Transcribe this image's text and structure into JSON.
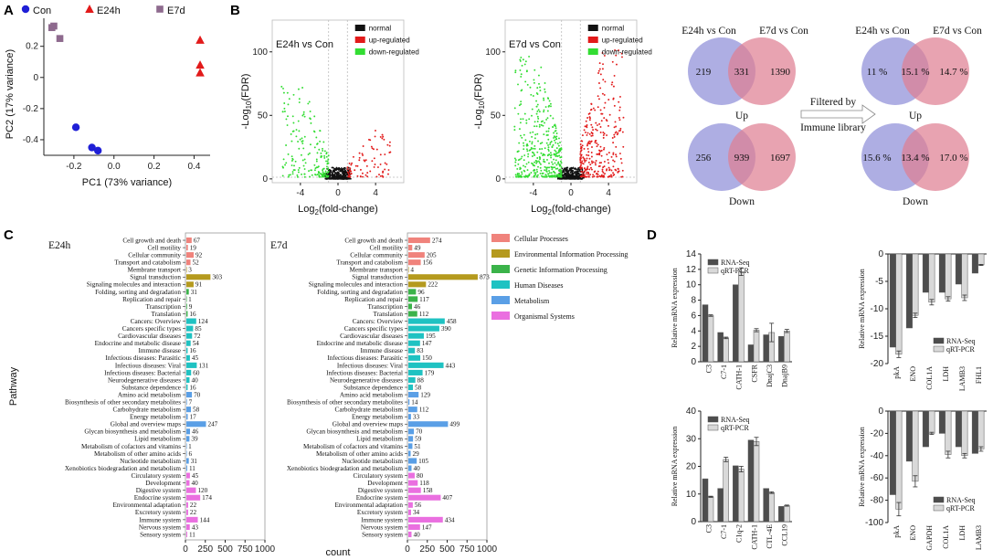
{
  "colors": {
    "con": "#1f1fd6",
    "e24h": "#e21a1a",
    "e7d": "#8e6a8e",
    "normal": "#111111",
    "up": "#e21a1a",
    "down": "#33dd33",
    "venn_left": "#8f8fd8",
    "venn_right": "#df7f93",
    "bar_dark": "#4d4d4d",
    "bar_light": "#d9d9d9",
    "cellular": "#f0837c",
    "environmental": "#b59a1e",
    "genetic": "#3bb34a",
    "human": "#1fc2c2",
    "metabolism": "#5a9fe6",
    "organismal": "#ea6fe0"
  },
  "panels": {
    "a": "A",
    "b": "B",
    "c": "C",
    "d": "D"
  },
  "chart_data": [
    {
      "id": "pca",
      "type": "scatter",
      "title": "",
      "xlabel": "PC1 (73% variance)",
      "ylabel": "PC2 (17% variance)",
      "xlim": [
        -0.35,
        0.48
      ],
      "ylim": [
        -0.5,
        0.38
      ],
      "xticks": [
        -0.2,
        0.0,
        0.2,
        0.4
      ],
      "xtick_labels": [
        "-0.2",
        "0.0",
        "0.2",
        "0.4"
      ],
      "yticks": [
        -0.4,
        -0.2,
        0.0,
        0.2
      ],
      "ytick_labels": [
        "-0.4",
        "-0.2",
        "0",
        "0.2"
      ],
      "legend": [
        "Con",
        "E24h",
        "E7d"
      ],
      "series": [
        {
          "name": "Con",
          "marker": "circle",
          "points": [
            [
              -0.19,
              -0.32
            ],
            [
              -0.11,
              -0.45
            ],
            [
              -0.08,
              -0.47
            ]
          ]
        },
        {
          "name": "E24h",
          "marker": "triangle",
          "points": [
            [
              0.43,
              0.24
            ],
            [
              0.43,
              0.08
            ],
            [
              0.43,
              0.03
            ]
          ]
        },
        {
          "name": "E7d",
          "marker": "square",
          "points": [
            [
              -0.3,
              0.33
            ],
            [
              -0.31,
              0.32
            ],
            [
              -0.27,
              0.25
            ]
          ]
        }
      ]
    },
    {
      "id": "volcano_e24h",
      "type": "scatter",
      "title": "E24h vs Con",
      "xlabel_main": "Log",
      "xlabel_sub": "2",
      "xlabel_rest": "(fold-change)",
      "ylabel_main": "-Log",
      "ylabel_sub": "10",
      "ylabel_rest": "(FDR)",
      "xlim": [
        -7,
        7
      ],
      "ylim": [
        -3,
        125
      ],
      "xticks": [
        -4,
        0,
        4
      ],
      "xtick_labels": [
        "-4",
        "0",
        "4"
      ],
      "yticks": [
        0,
        50,
        100
      ],
      "ytick_labels": [
        "0",
        "50",
        "100"
      ],
      "legend": [
        "normal",
        "up-regulated",
        "down-regulated"
      ],
      "counts": {
        "up": 80,
        "down": 180
      },
      "max_y": {
        "up": 38,
        "down": 72
      }
    },
    {
      "id": "volcano_e7d",
      "type": "scatter",
      "title": "E7d vs Con",
      "xlabel_main": "Log",
      "xlabel_sub": "2",
      "xlabel_rest": "(fold-change)",
      "ylabel_main": "-Log",
      "ylabel_sub": "10",
      "ylabel_rest": "(FDR)",
      "xlim": [
        -7,
        7
      ],
      "ylim": [
        -3,
        125
      ],
      "xticks": [
        -4,
        0,
        4
      ],
      "xtick_labels": [
        "-4",
        "0",
        "4"
      ],
      "yticks": [
        0,
        50,
        100
      ],
      "ytick_labels": [
        "0",
        "50",
        "100"
      ],
      "legend": [
        "normal",
        "up-regulated",
        "down-regulated"
      ],
      "counts": {
        "up": 300,
        "down": 420
      },
      "max_y": {
        "up": 100,
        "down": 95
      }
    },
    {
      "id": "kegg_e24h",
      "type": "bar",
      "orientation": "horizontal",
      "title": "E24h",
      "xlabel": "count",
      "ylabel": "Pathway",
      "xlim": [
        0,
        1000
      ],
      "xticks": [
        0,
        250,
        500,
        750,
        1000
      ],
      "categories": [
        "Cell growth and death",
        "Cell motility",
        "Cellular community",
        "Transport and catabolism",
        "Membrane transport",
        "Signal transduction",
        "Signaling molecules and interaction",
        "Folding, sorting and degradation",
        "Replication and repair",
        "Transcription",
        "Translation",
        "Cancers: Overview",
        "Cancers specific types",
        "Cardiovascular diseases",
        "Endocrine and metabolic disease",
        "Immune disease",
        "Infectious diseases: Parasitic",
        "Infectious diseases: Viral",
        "Infectious diseases: Bacterial",
        "Neurodegenerative diseases",
        "Substance dependence",
        "Amino acid metabolism",
        "Biosynthesis of other secondary metabolites",
        "Carbohydrate metabolism",
        "Energy metabolism",
        "Global and overview maps",
        "Glycan biosynthesis and metabolism",
        "Lipid metabolism",
        "Metabolism of cofactors and vitamins",
        "Metabolism of other amino acids",
        "Nucleotide metabolism",
        "Xenobiotics biodegradation and metabolism",
        "Circulatory system",
        "Development",
        "Digestive system",
        "Endocrine system",
        "Environmental adaptation",
        "Excretory system",
        "Immune system",
        "Nervous system",
        "Sensory system"
      ],
      "groups": [
        "Cellular Processes",
        "Cellular Processes",
        "Cellular Processes",
        "Cellular Processes",
        "Environmental Information Processing",
        "Environmental Information Processing",
        "Environmental Information Processing",
        "Genetic Information Processing",
        "Genetic Information Processing",
        "Genetic Information Processing",
        "Genetic Information Processing",
        "Human Diseases",
        "Human Diseases",
        "Human Diseases",
        "Human Diseases",
        "Human Diseases",
        "Human Diseases",
        "Human Diseases",
        "Human Diseases",
        "Human Diseases",
        "Human Diseases",
        "Metabolism",
        "Metabolism",
        "Metabolism",
        "Metabolism",
        "Metabolism",
        "Metabolism",
        "Metabolism",
        "Metabolism",
        "Metabolism",
        "Metabolism",
        "Metabolism",
        "Organismal Systems",
        "Organismal Systems",
        "Organismal Systems",
        "Organismal Systems",
        "Organismal Systems",
        "Organismal Systems",
        "Organismal Systems",
        "Organismal Systems",
        "Organismal Systems"
      ],
      "values": [
        67,
        19,
        92,
        52,
        3,
        303,
        91,
        31,
        1,
        9,
        16,
        124,
        85,
        72,
        54,
        16,
        45,
        131,
        60,
        40,
        16,
        70,
        7,
        58,
        17,
        247,
        46,
        39,
        1,
        6,
        31,
        11,
        45,
        40,
        120,
        174,
        22,
        22,
        144,
        43,
        11
      ]
    },
    {
      "id": "kegg_e7d",
      "type": "bar",
      "orientation": "horizontal",
      "title": "E7d",
      "xlabel": "count",
      "xlim": [
        0,
        1000
      ],
      "xticks": [
        0,
        250,
        500,
        750,
        1000
      ],
      "legend": [
        "Cellular Processes",
        "Environmental Information Processing",
        "Genetic Information Processing",
        "Human Diseases",
        "Metabolism",
        "Organismal Systems"
      ],
      "values": [
        274,
        49,
        205,
        156,
        4,
        873,
        222,
        96,
        117,
        46,
        112,
        458,
        390,
        195,
        147,
        83,
        150,
        443,
        179,
        88,
        58,
        129,
        14,
        112,
        33,
        499,
        70,
        59,
        51,
        29,
        105,
        40,
        80,
        118,
        158,
        407,
        56,
        34,
        434,
        147,
        40
      ]
    },
    {
      "id": "qpcr_1",
      "type": "bar",
      "ylabel": "Relative mRNA expression",
      "categories": [
        "C3",
        "C7-1",
        "CATH-1",
        "CSFR",
        "DnajC3",
        "DnajB9"
      ],
      "series": [
        {
          "name": "RNA-Seq",
          "values": [
            7.4,
            3.8,
            10.0,
            2.2,
            3.5,
            3.3
          ]
        },
        {
          "name": "qRT-PCR",
          "values": [
            6.0,
            3.1,
            11.7,
            4.1,
            3.8,
            4.0
          ]
        }
      ],
      "errors": [
        0.1,
        0.1,
        0.5,
        0.2,
        1.2,
        0.2
      ],
      "ylim": [
        0,
        14
      ],
      "yticks": [
        0,
        2,
        4,
        6,
        8,
        10,
        12,
        14
      ]
    },
    {
      "id": "qpcr_2",
      "type": "bar",
      "ylabel": "Relative mRNA expression",
      "categories": [
        "pkA",
        "ENO",
        "COL1A",
        "LDH",
        "LAMB3",
        "FHL1"
      ],
      "series": [
        {
          "name": "RNA-Seq",
          "values": [
            -17.0,
            -13.5,
            -7.0,
            -7.0,
            -5.5,
            -3.5
          ]
        },
        {
          "name": "qRT-PCR",
          "values": [
            -18.3,
            -11.2,
            -8.8,
            -8.2,
            -8.0,
            -2.0
          ]
        }
      ],
      "errors": [
        0.6,
        0.4,
        0.5,
        0.4,
        0.5,
        0.1
      ],
      "ylim": [
        -20,
        0
      ],
      "yticks": [
        0,
        -5,
        -10,
        -15,
        -20
      ]
    },
    {
      "id": "qpcr_3",
      "type": "bar",
      "ylabel": "Relative mRNA expression",
      "categories": [
        "C3",
        "C7-1",
        "C1q-2",
        "CATH-1",
        "CTL-4E",
        "CCL19"
      ],
      "series": [
        {
          "name": "RNA-Seq",
          "values": [
            15.5,
            12.0,
            20.2,
            29.5,
            12.0,
            5.5
          ]
        },
        {
          "name": "qRT-PCR",
          "values": [
            9.0,
            22.5,
            19.0,
            29.0,
            10.5,
            5.8
          ]
        }
      ],
      "errors": [
        0.2,
        0.8,
        1.0,
        1.5,
        0.3,
        0.2
      ],
      "ylim": [
        0,
        40
      ],
      "yticks": [
        0,
        10,
        20,
        30,
        40
      ]
    },
    {
      "id": "qpcr_4",
      "type": "bar",
      "ylabel": "Relative mRNA expression",
      "categories": [
        "pkA",
        "ENO",
        "GAPDH",
        "COL1A",
        "LDH",
        "LAMB3"
      ],
      "series": [
        {
          "name": "RNA-Seq",
          "values": [
            -75,
            -45,
            -32,
            -20,
            -32,
            -38
          ]
        },
        {
          "name": "qRT-PCR",
          "values": [
            -88,
            -63,
            -20,
            -39,
            -40,
            -34
          ]
        }
      ],
      "errors": [
        6,
        5,
        1,
        3,
        2,
        2
      ],
      "ylim": [
        -100,
        0
      ],
      "yticks": [
        0,
        -20,
        -40,
        -60,
        -80,
        -100
      ]
    }
  ],
  "venn": {
    "up_left_title": "E24h vs Con",
    "up_right_title": "E7d vs Con",
    "up": {
      "left": "219",
      "mid": "331",
      "right": "1390",
      "label": "Up"
    },
    "down": {
      "left": "256",
      "mid": "939",
      "right": "1697",
      "label": "Down"
    },
    "up_pct": {
      "left": "11 %",
      "mid": "15.1 %",
      "right": "14.7 %",
      "label": "Up"
    },
    "down_pct": {
      "left": "15.6 %",
      "mid": "13.4 %",
      "right": "17.0 %",
      "label": "Down"
    },
    "filter_text_1": "Filtered by",
    "filter_text_2": "Immune library"
  }
}
